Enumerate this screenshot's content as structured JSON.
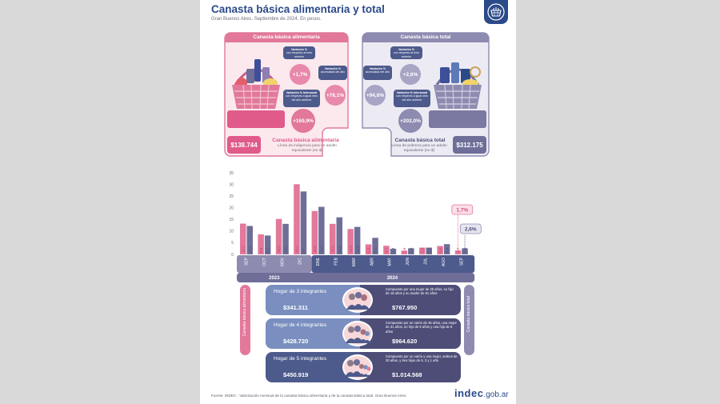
{
  "header": {
    "title": "Canasta básica alimentaria y total",
    "subtitle": "Gran Buenos Aires. Septiembre de 2024. En pesos."
  },
  "cba": {
    "panel_title": "Canasta básica alimentaria",
    "pill_mensual_title": "Variación %",
    "pill_mensual_sub": "con respecto al mes anterior",
    "value_mensual": "+1,7%",
    "pill_acum_title": "Variación %",
    "pill_acum_sub": "acumulada del año",
    "value_acum": "+78,1%",
    "pill_interanual_title": "Variación % interanual",
    "pill_interanual_sub": "con respecto a igual mes del año anterior",
    "value_interanual": "+169,9%",
    "value": "$138.744",
    "label": "Canasta básica alimentaria",
    "desc": "Línea de indigencia para un adulto equivalente (en $)"
  },
  "cbt": {
    "panel_title": "Canasta básica total",
    "pill_mensual_title": "Variación %",
    "pill_mensual_sub": "con respecto al mes anterior",
    "value_mensual": "+2,6%",
    "pill_acum_title": "Variación %",
    "pill_acum_sub": "acumulada del año",
    "value_acum": "+94,6%",
    "pill_interanual_title": "Variación % interanual",
    "pill_interanual_sub": "con respecto a igual mes del año anterior",
    "value_interanual": "+202,0%",
    "value": "$312.175",
    "label": "Canasta básica total",
    "desc": "Línea de pobreza para un adulto equivalente (en $)"
  },
  "chart_data": {
    "type": "bar",
    "categories": [
      "SEP",
      "OCT",
      "NOV",
      "DIC",
      "ENE",
      "FEB",
      "MAR",
      "ABR",
      "MAY",
      "JUN",
      "JUL",
      "AGO",
      "SEP"
    ],
    "year_labels": [
      "2023",
      "2024"
    ],
    "ylim": [
      0,
      35
    ],
    "yticks": [
      0,
      5,
      10,
      15,
      20,
      25,
      30,
      35
    ],
    "series": [
      {
        "values": [
          13.2,
          8.6,
          15.2,
          30.1,
          18.6,
          13.1,
          10.9,
          4.3,
          3.7,
          1.6,
          2.9,
          3.6,
          1.7
        ],
        "color": "#e2789a"
      },
      {
        "values": [
          12.2,
          8.1,
          13.1,
          27.0,
          20.4,
          15.9,
          11.8,
          7.1,
          2.4,
          2.6,
          2.9,
          4.4,
          2.6
        ],
        "color": "#6e6e99"
      }
    ],
    "last_labels": [
      "1,7%",
      "2,6%"
    ],
    "grid": false
  },
  "side_tabs": {
    "left": "Canasta básica alimentaria",
    "right": "Canasta básica total"
  },
  "hogares": [
    {
      "label": "Hogar de 3 integrantes",
      "cba": "$341.311",
      "desc": "Compuesto por una mujer de 35 años, su hijo de 18 años y su madre de 61 años",
      "cbt": "$767.950"
    },
    {
      "label": "Hogar de 4 integrantes",
      "cba": "$428.720",
      "desc": "Compuesto por un varón de 35 años, una mujer de 31 años, un hijo de 6 años y una hija de 8 años",
      "cbt": "$964.620"
    },
    {
      "label": "Hogar de 5 integrantes",
      "cba": "$450.919",
      "desc": "Compuesto por un varón y una mujer, ambos de 30 años, y tres hijos de 5, 3 y 1 año",
      "cbt": "$1.014.568"
    }
  ],
  "footer": {
    "source": "Fuente: INDEC - Valorización mensual de la canasta básica alimentaria y de la canasta básica total. Gran Buenos Aires.",
    "brand": "indec",
    "brand_suffix": ".gob.ar"
  },
  "colors": {
    "pink": "#e2789a",
    "pink_light": "#f4c9d4",
    "purple": "#6e6e99",
    "purple_light": "#c9c6db",
    "navy": "#4d5a8c",
    "title": "#2b4a8a"
  }
}
